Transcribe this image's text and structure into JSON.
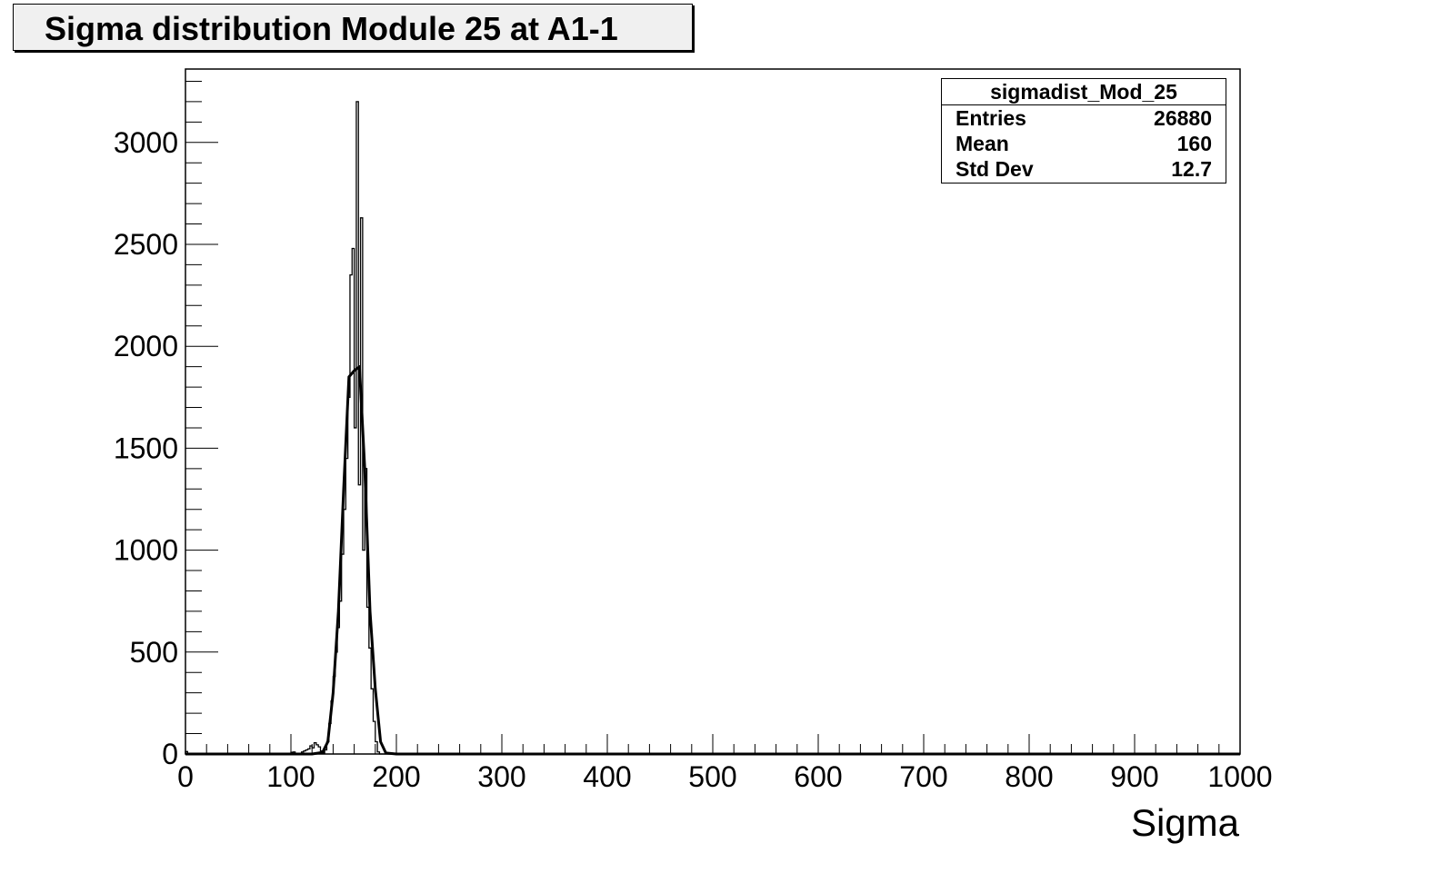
{
  "title": "Sigma distribution Module 25 at A1-1",
  "stats": {
    "name": "sigmadist_Mod_25",
    "rows": [
      {
        "label": "Entries",
        "value": "26880"
      },
      {
        "label": "Mean",
        "value": "160"
      },
      {
        "label": "Std Dev",
        "value": "12.7"
      }
    ]
  },
  "chart_data": {
    "type": "line",
    "title": "Sigma distribution Module 25 at A1-1",
    "xlabel": "Sigma",
    "ylabel": "",
    "xlim": [
      0,
      1000
    ],
    "ylim": [
      0,
      3360
    ],
    "x_ticks": [
      0,
      100,
      200,
      300,
      400,
      500,
      600,
      700,
      800,
      900,
      1000
    ],
    "y_ticks": [
      0,
      500,
      1000,
      1500,
      2000,
      2500,
      3000
    ],
    "grid": false,
    "legend": "top-right",
    "series": [
      {
        "style": "histogram-step",
        "bin_width": 2,
        "bins": [
          [
            0,
            12
          ],
          [
            2,
            0
          ],
          [
            100,
            8
          ],
          [
            102,
            10
          ],
          [
            104,
            0
          ],
          [
            110,
            10
          ],
          [
            112,
            15
          ],
          [
            114,
            20
          ],
          [
            116,
            25
          ],
          [
            118,
            40
          ],
          [
            120,
            30
          ],
          [
            122,
            55
          ],
          [
            124,
            45
          ],
          [
            126,
            35
          ],
          [
            128,
            15
          ],
          [
            130,
            5
          ],
          [
            132,
            20
          ],
          [
            134,
            60
          ],
          [
            136,
            150
          ],
          [
            138,
            260
          ],
          [
            140,
            380
          ],
          [
            142,
            500
          ],
          [
            144,
            620
          ],
          [
            146,
            750
          ],
          [
            148,
            980
          ],
          [
            150,
            1200
          ],
          [
            152,
            1450
          ],
          [
            154,
            1750
          ],
          [
            156,
            2350
          ],
          [
            158,
            2480
          ],
          [
            160,
            1600
          ],
          [
            162,
            3200
          ],
          [
            164,
            1320
          ],
          [
            166,
            2630
          ],
          [
            168,
            1000
          ],
          [
            170,
            1400
          ],
          [
            172,
            720
          ],
          [
            174,
            520
          ],
          [
            176,
            320
          ],
          [
            178,
            160
          ],
          [
            180,
            60
          ],
          [
            182,
            10
          ],
          [
            184,
            0
          ]
        ]
      },
      {
        "style": "smooth-line",
        "points": [
          [
            0,
            0
          ],
          [
            120,
            0
          ],
          [
            130,
            8
          ],
          [
            135,
            60
          ],
          [
            140,
            300
          ],
          [
            145,
            700
          ],
          [
            150,
            1300
          ],
          [
            155,
            1850
          ],
          [
            160,
            1880
          ],
          [
            165,
            1900
          ],
          [
            170,
            1400
          ],
          [
            175,
            700
          ],
          [
            180,
            320
          ],
          [
            185,
            60
          ],
          [
            190,
            5
          ],
          [
            200,
            0
          ],
          [
            1000,
            0
          ]
        ]
      }
    ]
  }
}
